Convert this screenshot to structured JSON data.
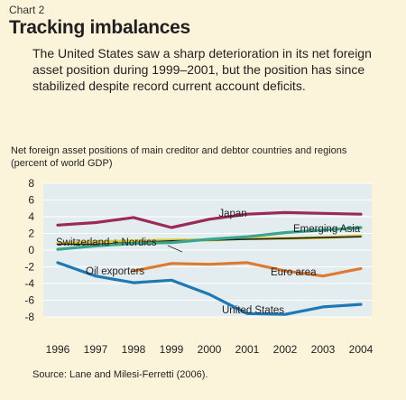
{
  "header": {
    "chart_number": "Chart 2",
    "title": "Tracking imbalances",
    "subtitle": "The United States saw a sharp deterioration in its net foreign asset position during 1999–2001, but the position has since stabilized despite record current account deficits."
  },
  "chart_label": {
    "line1": "Net foreign asset positions of main creditor and debtor countries and regions",
    "line2": "(percent of world GDP)"
  },
  "source": "Source: Lane and Milesi-Ferretti (2006).",
  "colors": {
    "background": "#fbf3da",
    "plot_background": "#e3edf0",
    "japan": "#9b2a59",
    "emerging_asia": "#3aa58b",
    "switzerland_nordics": "#d9c93a",
    "oil_exporters": "#1e1e1e",
    "euro_area": "#dd7b32",
    "united_states": "#1f78b4"
  },
  "chart_data": {
    "type": "line",
    "title": "Tracking imbalances",
    "ylabel": "percent of world GDP",
    "x": [
      1996,
      1997,
      1998,
      1999,
      2000,
      2001,
      2002,
      2003,
      2004
    ],
    "ylim": [
      -8,
      8
    ],
    "yticks": [
      8,
      6,
      4,
      2,
      0,
      -2,
      -4,
      -6,
      -8
    ],
    "grid": true,
    "legend": "direct labels",
    "series": [
      {
        "name": "Japan",
        "key": "japan",
        "values": [
          3.0,
          3.3,
          3.9,
          2.7,
          3.7,
          4.3,
          4.5,
          4.4,
          4.3
        ]
      },
      {
        "name": "Emerging Asia",
        "key": "emerging_asia",
        "values": [
          0.1,
          0.5,
          0.8,
          0.9,
          1.3,
          1.6,
          2.1,
          2.4,
          2.7
        ]
      },
      {
        "name": "Switzerland + Nordics",
        "key": "switzerland_nordics",
        "values": [
          0.8,
          1.0,
          1.1,
          1.2,
          1.2,
          1.4,
          1.4,
          1.5,
          1.7
        ]
      },
      {
        "name": "Oil exporters",
        "key": "oil_exporters",
        "values": [
          0.7,
          0.7,
          0.9,
          1.1,
          1.2,
          1.3,
          1.4,
          1.5,
          1.6
        ]
      },
      {
        "name": "Euro area",
        "key": "euro_area",
        "values": [
          null,
          null,
          -2.5,
          -1.6,
          -1.7,
          -1.5,
          -2.5,
          -3.1,
          -2.2
        ]
      },
      {
        "name": "United States",
        "key": "united_states",
        "values": [
          -1.5,
          -3.1,
          -3.9,
          -3.6,
          -5.3,
          -7.6,
          -7.7,
          -6.8,
          -6.5
        ]
      }
    ]
  }
}
